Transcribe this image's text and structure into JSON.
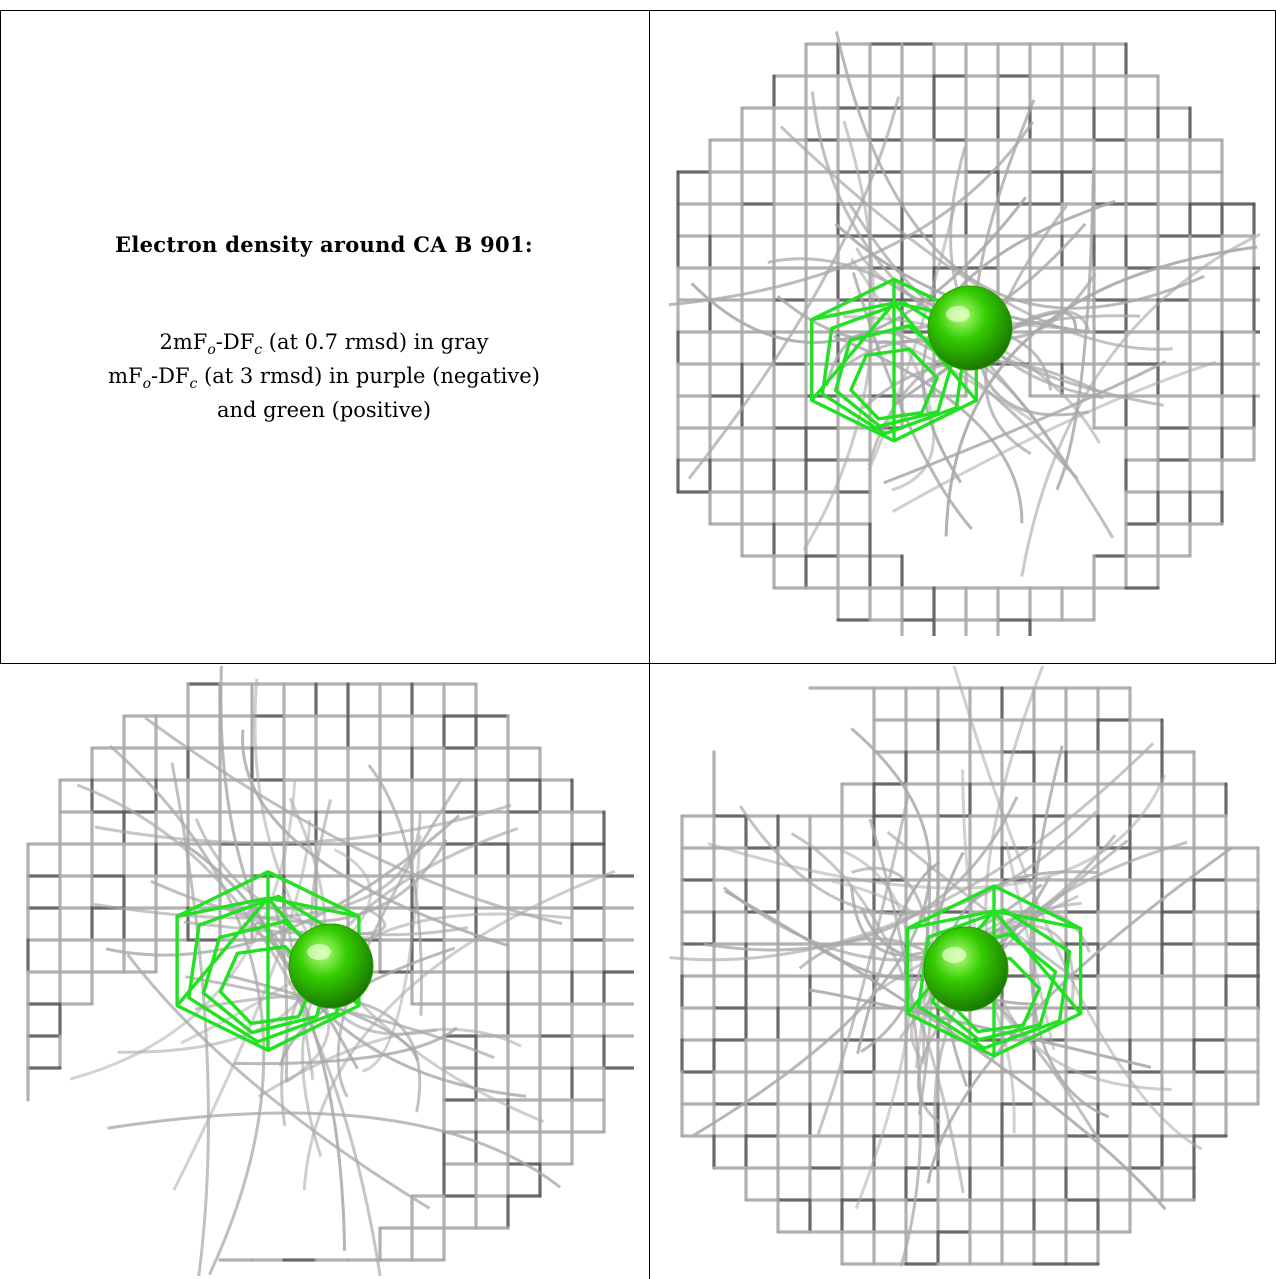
{
  "caption": {
    "title": "Electron density around CA B 901:",
    "line1_a": "2mF",
    "line1_b": "o",
    "line1_c": "-DF",
    "line1_d": "c",
    "line1_e": " (at 0.7 rmsd) in gray",
    "line2_a": "mF",
    "line2_b": "o",
    "line2_c": "-DF",
    "line2_d": "c",
    "line2_e": " (at 3 rmsd) in purple (negative)",
    "line3": "and green (positive)"
  },
  "colors": {
    "mesh_gray": "#a8a8a8",
    "mesh_dark": "#5a5a5a",
    "positive_green": "#22e022",
    "atom_green": "#33cc00"
  },
  "panels": [
    {
      "name": "view-top-right",
      "atom": "CA B 901"
    },
    {
      "name": "view-bottom-left",
      "atom": "CA B 901"
    },
    {
      "name": "view-bottom-right",
      "atom": "CA B 901"
    }
  ]
}
